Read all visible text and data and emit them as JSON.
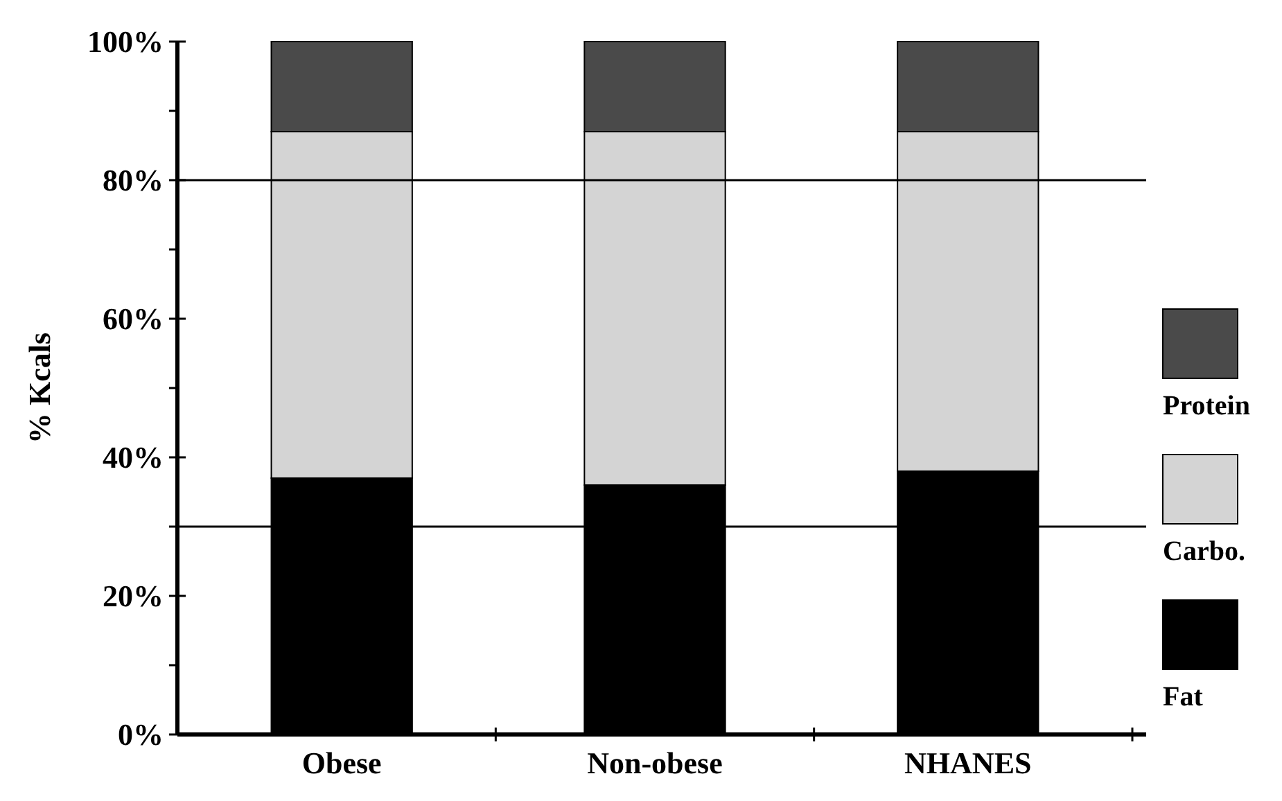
{
  "chart_data": {
    "type": "bar",
    "stacked": true,
    "ylabel": "% Kcals",
    "categories": [
      "Obese",
      "Non-obese",
      "NHANES"
    ],
    "series": [
      {
        "name": "Fat",
        "color": "#000000",
        "values": [
          37,
          36,
          38
        ]
      },
      {
        "name": "Carbo.",
        "color": "#d4d4d4",
        "values": [
          50,
          51,
          49
        ]
      },
      {
        "name": "Protein",
        "color": "#4a4a4a",
        "values": [
          13,
          13,
          13
        ]
      }
    ],
    "ylim": [
      0,
      100
    ],
    "yticks": [
      {
        "value": 0,
        "label": "0%"
      },
      {
        "value": 10,
        "label": null
      },
      {
        "value": 20,
        "label": "20%"
      },
      {
        "value": 30,
        "label": null
      },
      {
        "value": 40,
        "label": "40%"
      },
      {
        "value": 50,
        "label": null
      },
      {
        "value": 60,
        "label": "60%"
      },
      {
        "value": 70,
        "label": null
      },
      {
        "value": 80,
        "label": "80%"
      },
      {
        "value": 90,
        "label": null
      },
      {
        "value": 100,
        "label": "100%"
      }
    ],
    "ref_lines": [
      {
        "axis": "y",
        "value": 80,
        "color": "#000000"
      },
      {
        "axis": "y",
        "value": 30,
        "color": "#000000"
      }
    ],
    "grid": false,
    "legend": "right"
  }
}
